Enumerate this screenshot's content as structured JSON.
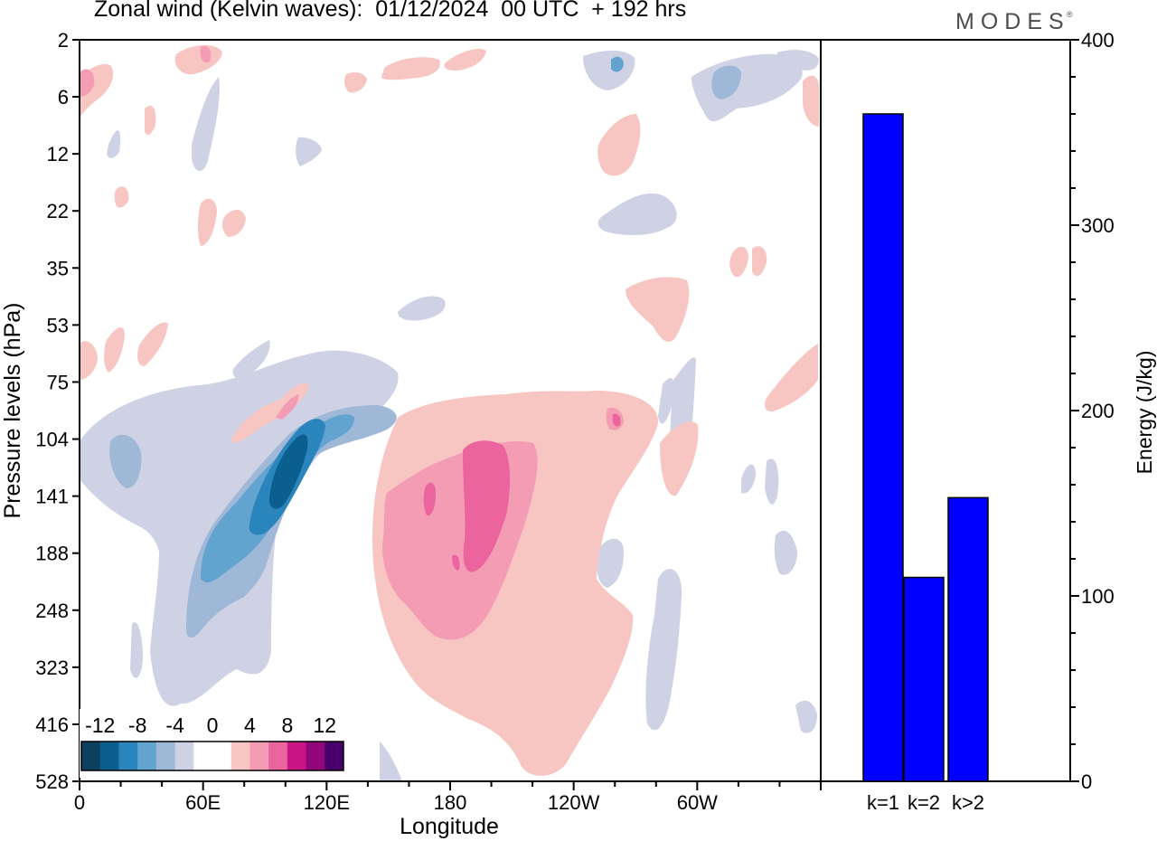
{
  "title": "Zonal wind (Kelvin waves):  01/12/2024  00 UTC  + 192 hrs",
  "brand": "MODES",
  "brand_mark": "®",
  "chart_data": [
    {
      "type": "heatmap",
      "xlabel": "Longitude",
      "ylabel": "Pressure levels (hPa)",
      "x_ticks": [
        "0",
        "60E",
        "120E",
        "180",
        "120W",
        "60W"
      ],
      "x_range_deg": [
        0,
        360
      ],
      "y_ticks": [
        "2",
        "6",
        "12",
        "22",
        "35",
        "53",
        "75",
        "104",
        "141",
        "188",
        "248",
        "323",
        "416",
        "528"
      ],
      "grid": false,
      "legend_position": "bottom-left",
      "colorbar": {
        "tick_labels": [
          "-12",
          "-8",
          "-4",
          "0",
          "4",
          "8",
          "12"
        ],
        "colors": [
          "#0d3f5e",
          "#0a5f8e",
          "#2b85bd",
          "#63a3cf",
          "#9fb8d8",
          "#cfd2e5",
          "#ffffff",
          "#ffffff",
          "#f7c6c2",
          "#f49cb4",
          "#ec649e",
          "#c71585",
          "#92087a",
          "#4a006a"
        ]
      },
      "features": [
        {
          "name": "easterly anomaly",
          "lon_range": [
            40,
            150
          ],
          "level_range": [
            75,
            416
          ],
          "min": -12
        },
        {
          "name": "westerly anomaly",
          "lon_range": [
            140,
            270
          ],
          "level_range": [
            75,
            528
          ],
          "max": 8
        }
      ]
    },
    {
      "type": "bar",
      "ylabel": "Energy (J/kg)",
      "y_axis_side": "right",
      "categories": [
        "k=1",
        "k=2",
        "k>2"
      ],
      "values": [
        360,
        110,
        153
      ],
      "ylim": [
        0,
        400
      ],
      "y_ticks": [
        "0",
        "100",
        "200",
        "300",
        "400"
      ],
      "bar_color": "#0000ff"
    }
  ]
}
